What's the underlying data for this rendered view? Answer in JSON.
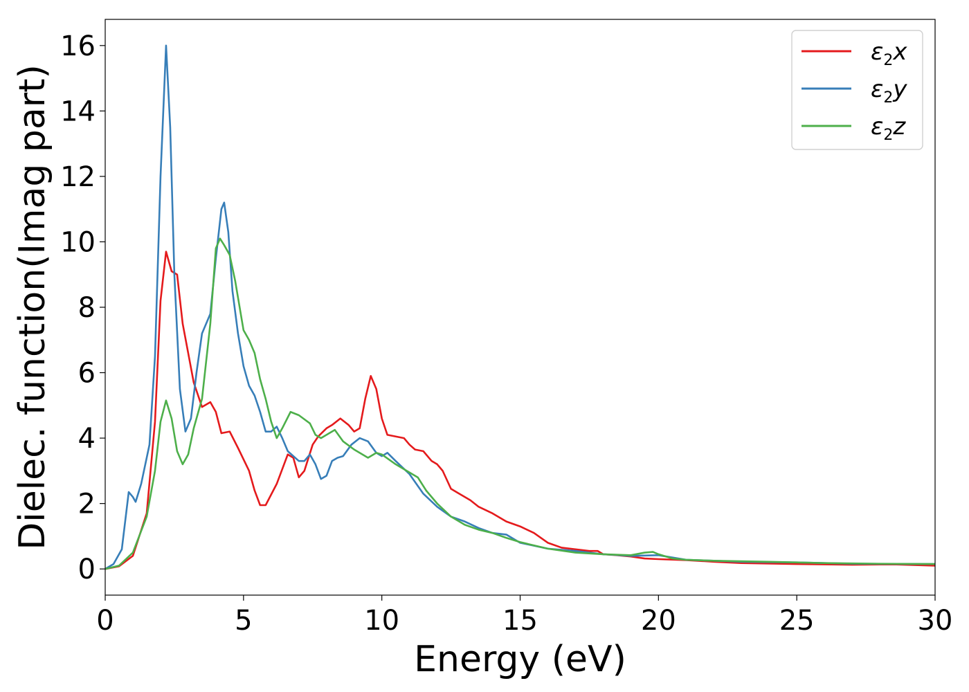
{
  "chart_data": {
    "type": "line",
    "title": "",
    "xlabel": "Energy (eV)",
    "ylabel": "Dielec. function(Imag part)",
    "xlim": [
      0,
      30
    ],
    "ylim": [
      -0.8,
      16.8
    ],
    "xticks": [
      0,
      5,
      10,
      15,
      20,
      25,
      30
    ],
    "yticks": [
      0,
      2,
      4,
      6,
      8,
      10,
      12,
      14,
      16
    ],
    "grid": false,
    "legend_position": "top-right",
    "series": [
      {
        "name": "ε2x",
        "legend_base": "ε",
        "legend_sub": "2",
        "legend_tail": "x",
        "color": "#e41a1c",
        "points": [
          [
            0,
            0
          ],
          [
            0.5,
            0.08
          ],
          [
            1.0,
            0.4
          ],
          [
            1.5,
            1.7
          ],
          [
            1.8,
            4.5
          ],
          [
            2.0,
            8.2
          ],
          [
            2.2,
            9.7
          ],
          [
            2.4,
            9.1
          ],
          [
            2.6,
            9.0
          ],
          [
            2.8,
            7.5
          ],
          [
            3.0,
            6.6
          ],
          [
            3.2,
            5.7
          ],
          [
            3.5,
            4.95
          ],
          [
            3.8,
            5.1
          ],
          [
            4.0,
            4.8
          ],
          [
            4.2,
            4.15
          ],
          [
            4.5,
            4.2
          ],
          [
            4.8,
            3.7
          ],
          [
            5.2,
            3.0
          ],
          [
            5.4,
            2.4
          ],
          [
            5.6,
            1.95
          ],
          [
            5.8,
            1.95
          ],
          [
            6.2,
            2.6
          ],
          [
            6.6,
            3.5
          ],
          [
            6.8,
            3.4
          ],
          [
            7.0,
            2.8
          ],
          [
            7.2,
            3.0
          ],
          [
            7.5,
            3.8
          ],
          [
            7.7,
            4.05
          ],
          [
            8.0,
            4.3
          ],
          [
            8.2,
            4.4
          ],
          [
            8.5,
            4.6
          ],
          [
            8.8,
            4.4
          ],
          [
            9.0,
            4.2
          ],
          [
            9.2,
            4.3
          ],
          [
            9.4,
            5.2
          ],
          [
            9.6,
            5.9
          ],
          [
            9.8,
            5.5
          ],
          [
            10.0,
            4.6
          ],
          [
            10.2,
            4.1
          ],
          [
            10.5,
            4.05
          ],
          [
            10.8,
            4.0
          ],
          [
            11.0,
            3.8
          ],
          [
            11.2,
            3.65
          ],
          [
            11.5,
            3.6
          ],
          [
            11.8,
            3.3
          ],
          [
            12.0,
            3.2
          ],
          [
            12.2,
            3.0
          ],
          [
            12.5,
            2.45
          ],
          [
            12.8,
            2.3
          ],
          [
            13.2,
            2.1
          ],
          [
            13.5,
            1.9
          ],
          [
            14.0,
            1.7
          ],
          [
            14.5,
            1.45
          ],
          [
            15.0,
            1.3
          ],
          [
            15.5,
            1.1
          ],
          [
            16.0,
            0.8
          ],
          [
            16.5,
            0.65
          ],
          [
            17.0,
            0.6
          ],
          [
            17.5,
            0.55
          ],
          [
            17.8,
            0.55
          ],
          [
            18.0,
            0.45
          ],
          [
            18.5,
            0.42
          ],
          [
            19.0,
            0.38
          ],
          [
            19.5,
            0.32
          ],
          [
            20.0,
            0.3
          ],
          [
            21.0,
            0.27
          ],
          [
            22.0,
            0.22
          ],
          [
            23.0,
            0.18
          ],
          [
            25.0,
            0.15
          ],
          [
            27.0,
            0.13
          ],
          [
            28.5,
            0.14
          ],
          [
            30.0,
            0.1
          ]
        ]
      },
      {
        "name": "ε2y",
        "legend_base": "ε",
        "legend_sub": "2",
        "legend_tail": "y",
        "color": "#377eb8",
        "points": [
          [
            0,
            0
          ],
          [
            0.3,
            0.15
          ],
          [
            0.6,
            0.6
          ],
          [
            0.85,
            2.35
          ],
          [
            1.0,
            2.2
          ],
          [
            1.1,
            2.05
          ],
          [
            1.3,
            2.6
          ],
          [
            1.6,
            3.8
          ],
          [
            1.8,
            6.5
          ],
          [
            2.0,
            12.0
          ],
          [
            2.2,
            16.0
          ],
          [
            2.35,
            13.5
          ],
          [
            2.5,
            9.0
          ],
          [
            2.7,
            5.5
          ],
          [
            2.9,
            4.2
          ],
          [
            3.1,
            4.6
          ],
          [
            3.3,
            6.0
          ],
          [
            3.5,
            7.2
          ],
          [
            3.8,
            7.8
          ],
          [
            4.0,
            9.5
          ],
          [
            4.2,
            11.0
          ],
          [
            4.3,
            11.2
          ],
          [
            4.45,
            10.3
          ],
          [
            4.6,
            8.5
          ],
          [
            4.8,
            7.2
          ],
          [
            5.0,
            6.2
          ],
          [
            5.2,
            5.6
          ],
          [
            5.4,
            5.3
          ],
          [
            5.6,
            4.8
          ],
          [
            5.8,
            4.2
          ],
          [
            6.0,
            4.2
          ],
          [
            6.2,
            4.35
          ],
          [
            6.4,
            4.0
          ],
          [
            6.6,
            3.6
          ],
          [
            7.0,
            3.3
          ],
          [
            7.2,
            3.3
          ],
          [
            7.4,
            3.5
          ],
          [
            7.6,
            3.2
          ],
          [
            7.8,
            2.75
          ],
          [
            8.0,
            2.85
          ],
          [
            8.2,
            3.3
          ],
          [
            8.4,
            3.4
          ],
          [
            8.6,
            3.45
          ],
          [
            8.9,
            3.8
          ],
          [
            9.2,
            4.0
          ],
          [
            9.5,
            3.9
          ],
          [
            9.8,
            3.55
          ],
          [
            10.0,
            3.45
          ],
          [
            10.2,
            3.55
          ],
          [
            10.5,
            3.3
          ],
          [
            11.0,
            2.9
          ],
          [
            11.5,
            2.3
          ],
          [
            12.0,
            1.9
          ],
          [
            12.5,
            1.6
          ],
          [
            13.0,
            1.45
          ],
          [
            13.5,
            1.25
          ],
          [
            14.0,
            1.1
          ],
          [
            14.5,
            1.05
          ],
          [
            15.0,
            0.8
          ],
          [
            16.0,
            0.62
          ],
          [
            17.0,
            0.55
          ],
          [
            18.0,
            0.45
          ],
          [
            19.0,
            0.4
          ],
          [
            20.0,
            0.42
          ],
          [
            21.0,
            0.28
          ],
          [
            22.0,
            0.25
          ],
          [
            23.0,
            0.22
          ],
          [
            25.0,
            0.2
          ],
          [
            27.0,
            0.16
          ],
          [
            30.0,
            0.15
          ]
        ]
      },
      {
        "name": "ε2z",
        "legend_base": "ε",
        "legend_sub": "2",
        "legend_tail": "z",
        "color": "#4daf4a",
        "points": [
          [
            0,
            0
          ],
          [
            0.5,
            0.1
          ],
          [
            1.0,
            0.5
          ],
          [
            1.5,
            1.6
          ],
          [
            1.8,
            3.0
          ],
          [
            2.0,
            4.5
          ],
          [
            2.2,
            5.15
          ],
          [
            2.4,
            4.6
          ],
          [
            2.6,
            3.6
          ],
          [
            2.8,
            3.2
          ],
          [
            3.0,
            3.5
          ],
          [
            3.2,
            4.3
          ],
          [
            3.5,
            5.2
          ],
          [
            3.8,
            7.5
          ],
          [
            4.0,
            9.8
          ],
          [
            4.15,
            10.1
          ],
          [
            4.3,
            9.9
          ],
          [
            4.5,
            9.6
          ],
          [
            4.7,
            8.8
          ],
          [
            5.0,
            7.3
          ],
          [
            5.2,
            7.0
          ],
          [
            5.4,
            6.6
          ],
          [
            5.6,
            5.8
          ],
          [
            5.8,
            5.2
          ],
          [
            6.0,
            4.5
          ],
          [
            6.2,
            4.0
          ],
          [
            6.4,
            4.3
          ],
          [
            6.7,
            4.8
          ],
          [
            7.0,
            4.7
          ],
          [
            7.4,
            4.45
          ],
          [
            7.6,
            4.1
          ],
          [
            7.8,
            4.0
          ],
          [
            8.0,
            4.1
          ],
          [
            8.3,
            4.25
          ],
          [
            8.6,
            3.9
          ],
          [
            9.0,
            3.65
          ],
          [
            9.3,
            3.5
          ],
          [
            9.5,
            3.4
          ],
          [
            9.8,
            3.55
          ],
          [
            10.0,
            3.5
          ],
          [
            10.5,
            3.2
          ],
          [
            11.0,
            2.95
          ],
          [
            11.3,
            2.8
          ],
          [
            11.6,
            2.4
          ],
          [
            12.0,
            2.0
          ],
          [
            12.5,
            1.6
          ],
          [
            13.0,
            1.35
          ],
          [
            13.5,
            1.2
          ],
          [
            14.0,
            1.1
          ],
          [
            14.5,
            0.95
          ],
          [
            15.0,
            0.82
          ],
          [
            16.0,
            0.62
          ],
          [
            17.0,
            0.5
          ],
          [
            18.0,
            0.45
          ],
          [
            19.0,
            0.42
          ],
          [
            19.5,
            0.5
          ],
          [
            19.8,
            0.52
          ],
          [
            20.0,
            0.45
          ],
          [
            20.5,
            0.32
          ],
          [
            21.0,
            0.28
          ],
          [
            22.0,
            0.25
          ],
          [
            24.0,
            0.22
          ],
          [
            26.0,
            0.18
          ],
          [
            28.0,
            0.16
          ],
          [
            30.0,
            0.15
          ]
        ]
      }
    ]
  }
}
